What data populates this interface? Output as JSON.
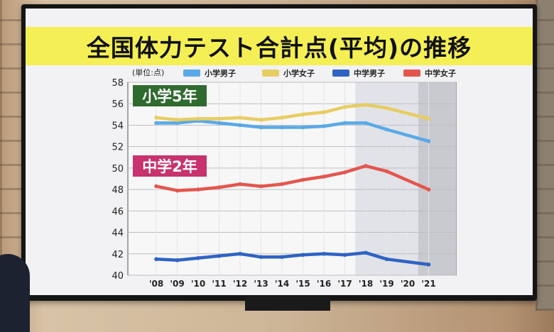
{
  "chart_data": {
    "type": "line",
    "title": "全国体力テスト合計点(平均)の推移",
    "unit_label": "(単位:点)",
    "group_labels": [
      "小学5年",
      "中学2年"
    ],
    "x": [
      "'08",
      "'09",
      "'10",
      "'11",
      "'12",
      "'13",
      "'14",
      "'15",
      "'16",
      "'17",
      "'18",
      "'19",
      "'20",
      "'21"
    ],
    "ylim": [
      40,
      58
    ],
    "yticks": [
      40,
      42,
      44,
      46,
      48,
      50,
      52,
      54,
      56,
      58
    ],
    "grid": true,
    "legend_position": "top",
    "series": [
      {
        "name": "小学男子",
        "color": "#5aa9e6",
        "values": [
          54.2,
          54.2,
          54.4,
          54.2,
          54.0,
          53.8,
          53.8,
          53.8,
          53.9,
          54.2,
          54.2,
          53.6,
          null,
          52.5
        ]
      },
      {
        "name": "小学女子",
        "color": "#e8cd63",
        "values": [
          54.7,
          54.5,
          54.6,
          54.6,
          54.7,
          54.5,
          54.7,
          55.0,
          55.2,
          55.7,
          55.9,
          55.6,
          null,
          54.6
        ]
      },
      {
        "name": "中学男子",
        "color": "#2e63c4",
        "values": [
          41.5,
          41.4,
          41.6,
          41.8,
          42.0,
          41.7,
          41.7,
          41.9,
          42.0,
          41.9,
          42.1,
          41.5,
          null,
          41.0
        ]
      },
      {
        "name": "中学女子",
        "color": "#e3564e",
        "values": [
          48.3,
          47.9,
          48.0,
          48.2,
          48.5,
          48.3,
          48.5,
          48.9,
          49.2,
          49.6,
          50.2,
          49.7,
          null,
          48.0
        ]
      }
    ],
    "shaded_ranges": [
      [
        "'17",
        "'21"
      ]
    ],
    "shade_colors": [
      "#e2e3e8",
      "#c9cacf"
    ]
  }
}
